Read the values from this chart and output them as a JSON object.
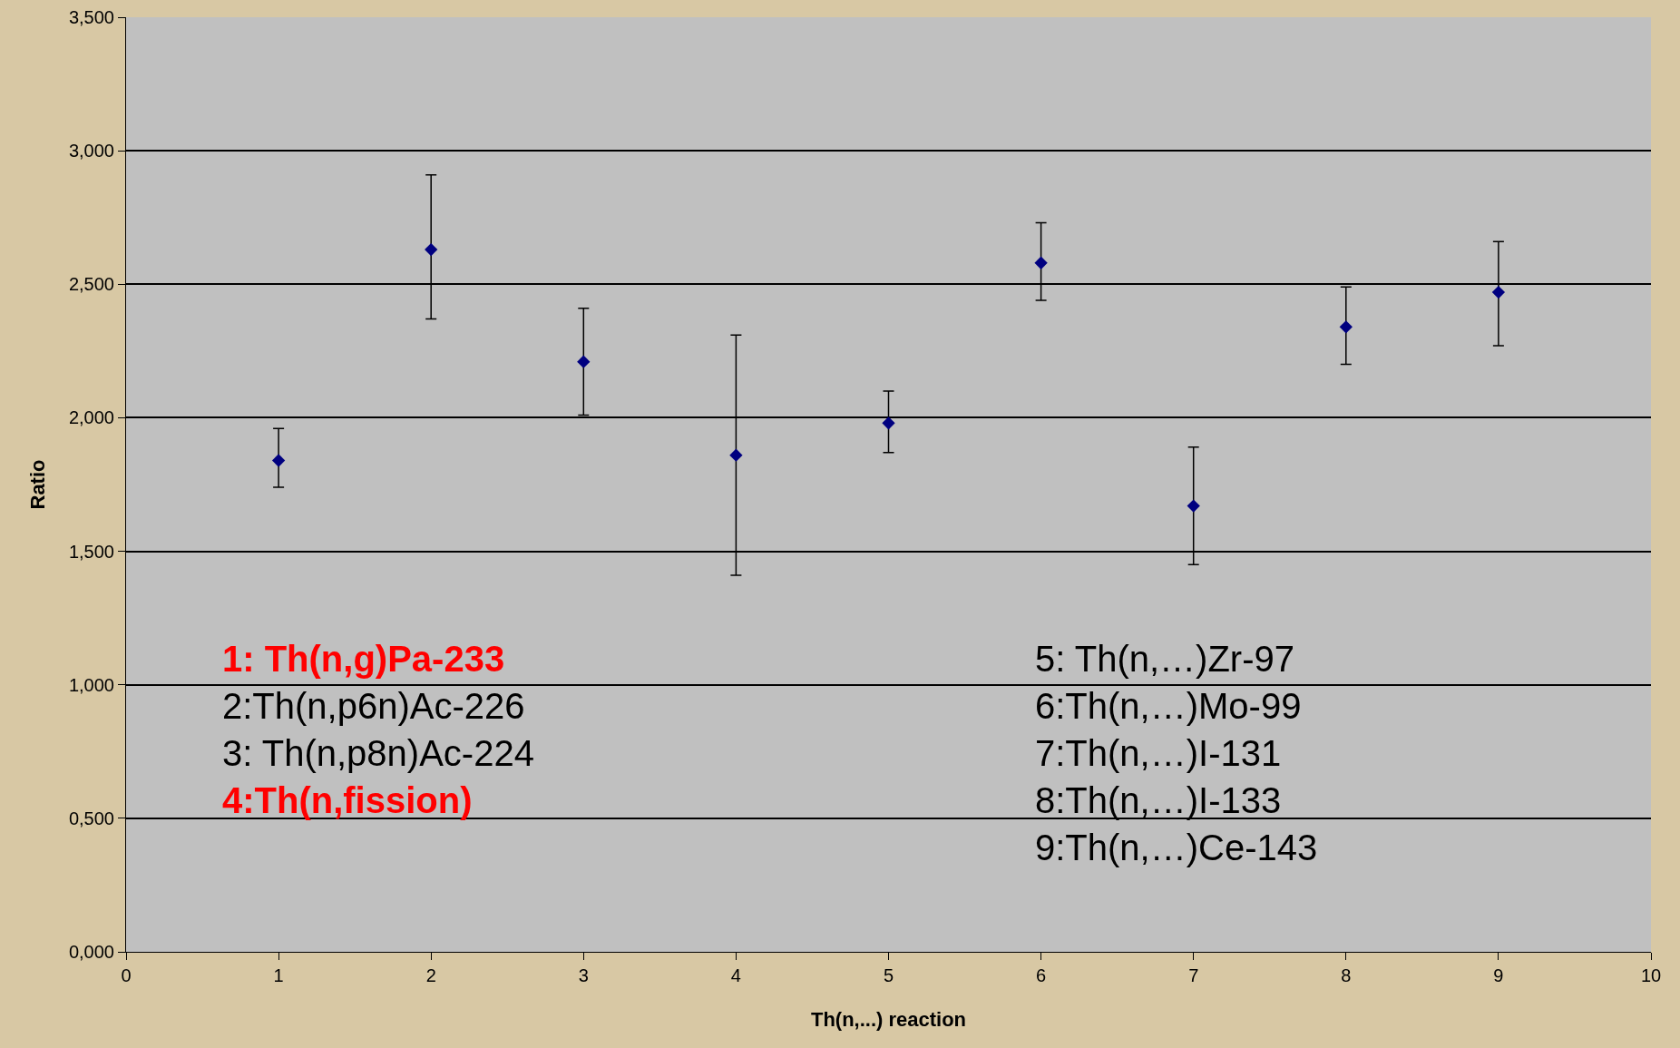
{
  "chart_data": {
    "type": "scatter",
    "xlabel": "Th(n,...) reaction",
    "ylabel": "Ratio",
    "x": [
      1,
      2,
      3,
      4,
      5,
      6,
      7,
      8,
      9
    ],
    "values": [
      1.84,
      2.63,
      2.21,
      1.86,
      1.98,
      2.58,
      1.67,
      2.34,
      2.47
    ],
    "errors": [
      [
        1.74,
        1.96
      ],
      [
        2.37,
        2.91
      ],
      [
        2.01,
        2.41
      ],
      [
        1.41,
        2.31
      ],
      [
        1.87,
        2.1
      ],
      [
        2.44,
        2.73
      ],
      [
        1.45,
        1.89
      ],
      [
        2.2,
        2.49
      ],
      [
        2.27,
        2.66
      ]
    ],
    "color": "#000080",
    "marker": "diamond",
    "grid": "y",
    "xlim": [
      0,
      10
    ],
    "xticks": [
      0,
      1,
      2,
      3,
      4,
      5,
      6,
      7,
      8,
      9,
      10
    ],
    "ylim": [
      0,
      3.5
    ],
    "yticks": [
      {
        "value": 0,
        "label": "0,000"
      },
      {
        "value": 0.5,
        "label": "0,500"
      },
      {
        "value": 1,
        "label": "1,000"
      },
      {
        "value": 1.5,
        "label": "1,500"
      },
      {
        "value": 2,
        "label": "2,000"
      },
      {
        "value": 2.5,
        "label": "2,500"
      },
      {
        "value": 3,
        "label": "3,000"
      },
      {
        "value": 3.5,
        "label": "3,500"
      }
    ],
    "annotations": [
      "1: Th(n,g)Pa-233",
      "2:Th(n,p6n)Ac-226",
      "3: Th(n,p8n)Ac-224",
      "4:Th(n,fission)",
      "5: Th(n,…)Zr-97",
      "6:Th(n,…)Mo-99",
      "7:Th(n,…)I-131",
      "8:Th(n,…)I-133",
      "9:Th(n,…)Ce-143"
    ]
  }
}
